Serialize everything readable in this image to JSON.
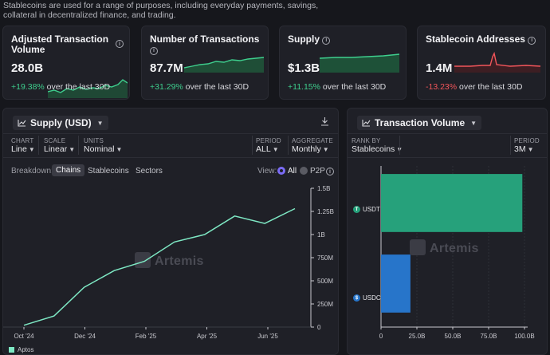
{
  "intro": "Stablecoins are used for a range of purposes, including everyday payments, savings, collateral in decentralized finance, and trading.",
  "metrics": [
    {
      "title": "Adjusted Transaction Volume",
      "value": "28.0B",
      "change": "+19.38%",
      "suffix": "over the last 30D",
      "trend": "up"
    },
    {
      "title": "Number of Transactions",
      "value": "87.7M",
      "change": "+31.29%",
      "suffix": "over the last 30D",
      "trend": "up"
    },
    {
      "title": "Supply",
      "value": "$1.3B",
      "change": "+11.15%",
      "suffix": "over the last 30D",
      "trend": "up"
    },
    {
      "title": "Stablecoin Addresses",
      "value": "1.4M",
      "change": "-13.23%",
      "suffix": "over the last 30D",
      "trend": "down"
    }
  ],
  "colors": {
    "positive": "#3ecf8e",
    "negative": "#f2555a",
    "line": "#7ee8c4",
    "usdt": "#26a17b",
    "usdc": "#2775ca"
  },
  "supply_panel": {
    "title": "Supply (USD)",
    "download_icon": "download-icon",
    "controls": [
      {
        "label": "CHART",
        "value": "Line"
      },
      {
        "label": "SCALE",
        "value": "Linear"
      },
      {
        "label": "UNITS",
        "value": "Nominal"
      },
      {
        "label": "PERIOD",
        "value": "ALL"
      },
      {
        "label": "AGGREGATE",
        "value": "Monthly"
      }
    ],
    "breakdown_label": "Breakdown:",
    "breakdown_tabs": [
      "Chains",
      "Stablecoins",
      "Sectors"
    ],
    "view_label": "View:",
    "view_options": [
      "All",
      "P2P"
    ],
    "watermark": "Artemis",
    "legend": "Aptos"
  },
  "volume_panel": {
    "title": "Transaction Volume",
    "rank_label": "RANK BY",
    "rank_value": "Stablecoins",
    "period_label": "PERIOD",
    "period_value": "3M",
    "watermark": "Artemis"
  },
  "chart_data": [
    {
      "type": "line",
      "title": "Supply (USD)",
      "series": [
        {
          "name": "Aptos",
          "values": [
            0.02,
            0.12,
            0.43,
            0.61,
            0.71,
            0.92,
            1.0,
            1.2,
            1.12,
            1.28
          ]
        }
      ],
      "x_tick_labels": [
        "Oct '24",
        "Dec '24",
        "Feb '25",
        "Apr '25",
        "Jun '25"
      ],
      "y_tick_labels": [
        "0",
        "250M",
        "500M",
        "750M",
        "1B",
        "1.25B",
        "1.5B"
      ],
      "ylim": [
        0,
        1.5
      ],
      "yunit": "B"
    },
    {
      "type": "bar",
      "orientation": "horizontal",
      "title": "Transaction Volume",
      "categories": [
        "USDT",
        "USDC"
      ],
      "values": [
        98.5,
        20.5
      ],
      "x_tick_labels": [
        "0",
        "25.0B",
        "50.0B",
        "75.0B",
        "100.0B"
      ],
      "xlim": [
        0,
        100
      ],
      "xunit": "B"
    }
  ]
}
